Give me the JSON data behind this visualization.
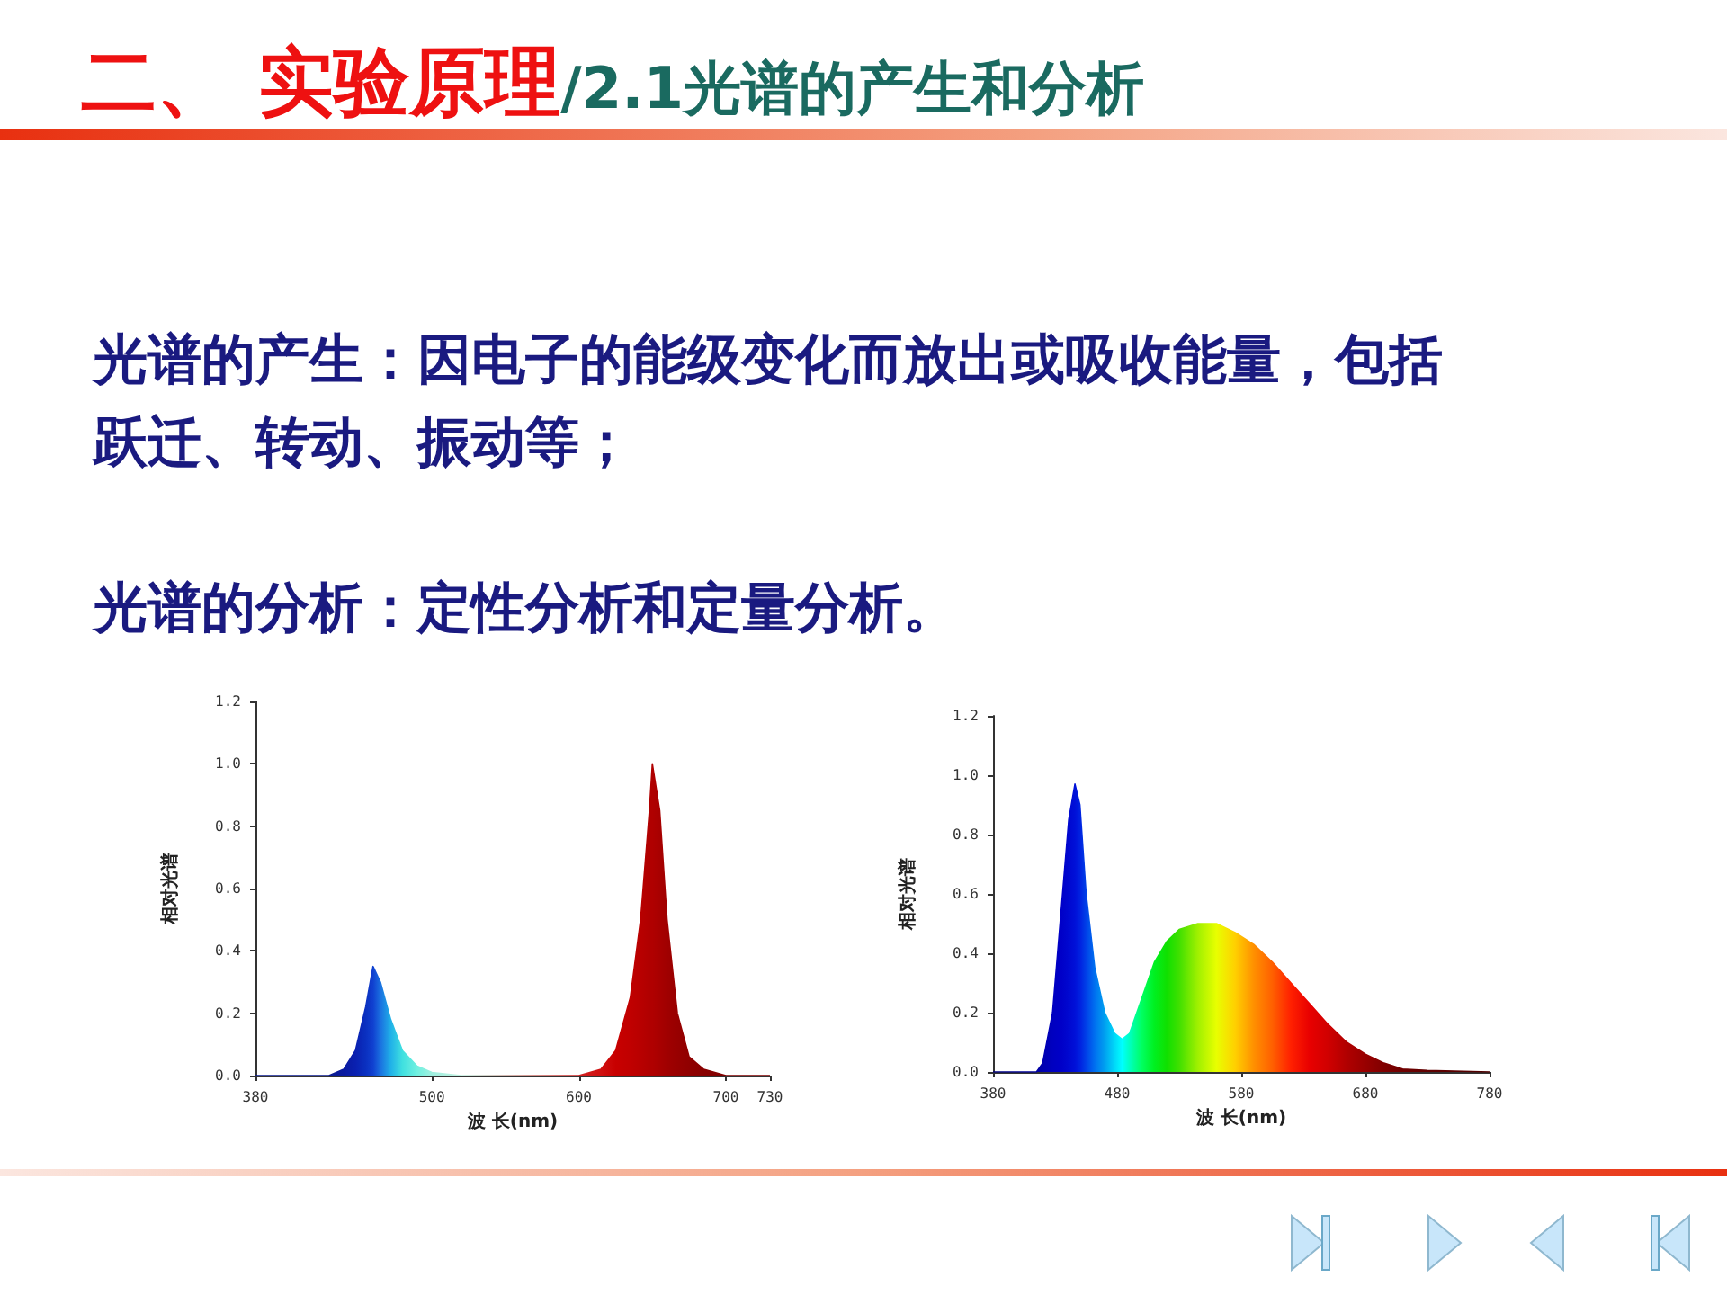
{
  "chart_data": [
    {
      "type": "other",
      "title": "二、 实验原理",
      "subtitle": "/2.1光谱的产生和分析",
      "annotations": [
        "光谱的产生：因电子的能级变化而放出或吸收能量，包括跃迁、转动、振动等；",
        "光谱的分析：定性分析和定量分析。"
      ]
    },
    {
      "type": "area",
      "xlabel": "波 长(nm)",
      "ylabel": "相对光谱",
      "xlim": [
        380,
        730
      ],
      "xticks": [
        380,
        500,
        600,
        700,
        730
      ],
      "ylim": [
        0,
        1.2
      ],
      "yticks": [
        {
          "value": 0,
          "label": "0.0"
        },
        {
          "value": 0.2,
          "label": "0.2"
        },
        {
          "value": 0.4,
          "label": "0.4"
        },
        {
          "value": 0.6,
          "label": "0.6"
        },
        {
          "value": 0.8,
          "label": "0.8"
        },
        {
          "value": 1,
          "label": "1.0"
        },
        {
          "value": 1.2,
          "label": "1.2"
        }
      ],
      "grid": false,
      "series": [
        {
          "x": [
            380,
            430,
            440,
            448,
            455,
            460,
            465,
            472,
            480,
            490,
            500,
            520,
            600,
            615,
            625,
            635,
            642,
            648,
            650,
            655,
            660,
            667,
            675,
            685,
            700,
            730
          ],
          "values": [
            0,
            0,
            0.02,
            0.08,
            0.22,
            0.35,
            0.3,
            0.18,
            0.08,
            0.03,
            0.01,
            0,
            0,
            0.02,
            0.08,
            0.25,
            0.5,
            0.85,
            1.0,
            0.85,
            0.5,
            0.2,
            0.06,
            0.02,
            0,
            0
          ],
          "colors": [
            "#0a1a90",
            "#0a1a90",
            "#0a1aa0",
            "#0a20b0",
            "#0a30c0",
            "#1040d0",
            "#1a70e0",
            "#20b0e8",
            "#40e0e0",
            "#70f0e0",
            "#a0f0e0",
            "#c0f0e0",
            "#d02020",
            "#d01010",
            "#c80000",
            "#c00000",
            "#b80000",
            "#b00000",
            "#b00000",
            "#a80000",
            "#a00000",
            "#980000",
            "#900000",
            "#880000",
            "#800000",
            "#800000"
          ]
        }
      ]
    },
    {
      "type": "area",
      "xlabel": "波 长(nm)",
      "ylabel": "相对光谱",
      "xlim": [
        380,
        780
      ],
      "xticks": [
        380,
        480,
        580,
        680,
        780
      ],
      "ylim": [
        0,
        1.2
      ],
      "yticks": [
        {
          "value": 0,
          "label": "0.0"
        },
        {
          "value": 0.2,
          "label": "0.2"
        },
        {
          "value": 0.4,
          "label": "0.4"
        },
        {
          "value": 0.6,
          "label": "0.6"
        },
        {
          "value": 0.8,
          "label": "0.8"
        },
        {
          "value": 1,
          "label": "1.0"
        },
        {
          "value": 1.2,
          "label": "1.2"
        }
      ],
      "grid": false,
      "series": [
        {
          "x": [
            380,
            415,
            420,
            428,
            435,
            441,
            446,
            450,
            455,
            462,
            470,
            478,
            484,
            490,
            500,
            510,
            520,
            530,
            545,
            560,
            575,
            590,
            605,
            620,
            635,
            650,
            665,
            680,
            695,
            710,
            730,
            780
          ],
          "values": [
            0,
            0,
            0.03,
            0.2,
            0.55,
            0.85,
            0.97,
            0.9,
            0.6,
            0.35,
            0.2,
            0.13,
            0.11,
            0.13,
            0.25,
            0.37,
            0.44,
            0.48,
            0.5,
            0.5,
            0.47,
            0.43,
            0.37,
            0.3,
            0.23,
            0.16,
            0.1,
            0.06,
            0.03,
            0.01,
            0.005,
            0
          ],
          "colors": [
            "#000080",
            "#0000a0",
            "#0000b0",
            "#0000c0",
            "#0000c8",
            "#0008d0",
            "#0010d8",
            "#0020e0",
            "#0040e8",
            "#0070f0",
            "#00a0f0",
            "#00d8f8",
            "#00ffff",
            "#00ffc0",
            "#00ff60",
            "#00f020",
            "#10e000",
            "#40e000",
            "#a0f000",
            "#e8ff00",
            "#ffd000",
            "#ff9000",
            "#ff6000",
            "#ff2000",
            "#e80000",
            "#d00000",
            "#b00000",
            "#980000",
            "#800000",
            "#700000",
            "#600000",
            "#500000"
          ]
        }
      ]
    }
  ]
}
